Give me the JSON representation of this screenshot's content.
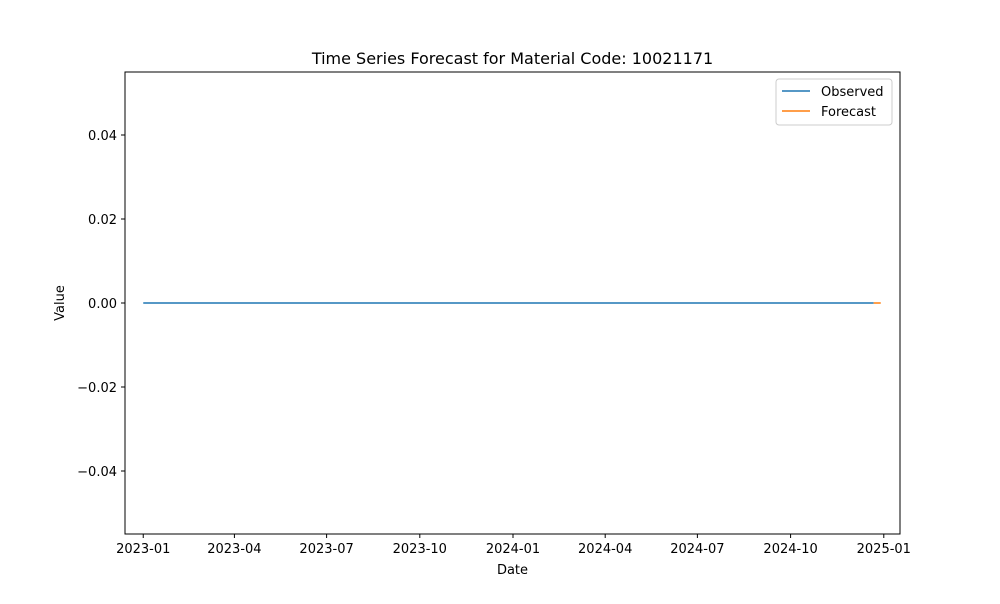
{
  "chart_data": {
    "type": "line",
    "title": "Time Series Forecast for Material Code: 10021171",
    "xlabel": "Date",
    "ylabel": "Value",
    "x_range": [
      "2022-12-14",
      "2025-01-17"
    ],
    "ylim": [
      -0.055,
      0.055
    ],
    "x_ticks": [
      "2023-01",
      "2023-04",
      "2023-07",
      "2023-10",
      "2024-01",
      "2024-04",
      "2024-07",
      "2024-10",
      "2025-01"
    ],
    "y_ticks": [
      0.04,
      0.02,
      0.0,
      -0.02,
      -0.04
    ],
    "y_tick_labels": [
      "0.04",
      "0.02",
      "0.00",
      "−0.02",
      "−0.04"
    ],
    "grid": false,
    "legend_position": "top-right",
    "series": [
      {
        "name": "Observed",
        "color": "#1f77b4",
        "x": [
          "2023-01-01",
          "2024-12-22"
        ],
        "y": [
          0,
          0
        ]
      },
      {
        "name": "Forecast",
        "color": "#ff7f0e",
        "x": [
          "2024-12-22",
          "2024-12-29"
        ],
        "y": [
          0,
          0
        ]
      }
    ]
  }
}
